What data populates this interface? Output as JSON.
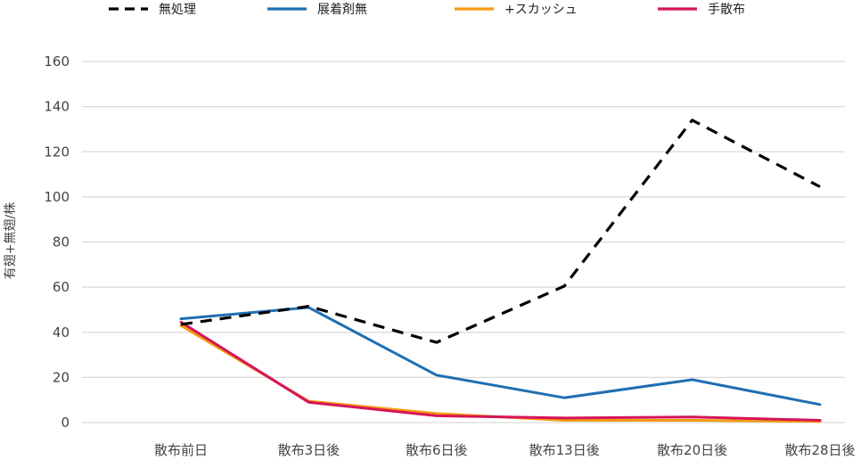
{
  "chart_data": {
    "type": "line",
    "title": "",
    "xlabel": "",
    "ylabel": "有翅+無翅/株",
    "ylim": [
      0,
      160
    ],
    "yticks": [
      0,
      20,
      40,
      60,
      80,
      100,
      120,
      140,
      160
    ],
    "grid": "horizontal",
    "legend_position": "top",
    "categories": [
      "散布前日",
      "散布3日後",
      "散布6日後",
      "散布13日後",
      "散布20日後",
      "散布28日後"
    ],
    "series": [
      {
        "name": "無処理",
        "color": "#000000",
        "dashed": true,
        "values": [
          43.5,
          51.5,
          35.5,
          60.5,
          134,
          104.5
        ]
      },
      {
        "name": "展着剤無",
        "color": "#1f6fb2",
        "dashed": false,
        "values": [
          46,
          51,
          21,
          11,
          19,
          8
        ]
      },
      {
        "name": "+スカッシュ",
        "color": "#f39c12",
        "dashed": false,
        "values": [
          43,
          9.5,
          4,
          1,
          1,
          0.5
        ]
      },
      {
        "name": "手散布",
        "color": "#d6145a",
        "dashed": false,
        "values": [
          44.5,
          9,
          3,
          2,
          2.5,
          1
        ]
      }
    ]
  }
}
